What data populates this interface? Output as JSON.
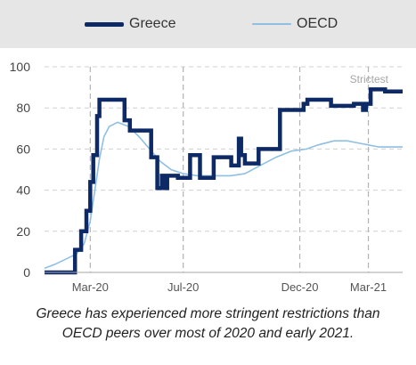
{
  "chart_data": {
    "type": "line",
    "xlabel": "",
    "ylabel": "",
    "ylim": [
      0,
      100
    ],
    "yticks": [
      0,
      20,
      40,
      60,
      80,
      100
    ],
    "ytick_labels": [
      "0",
      "20",
      "40",
      "60",
      "80",
      "100"
    ],
    "xlim": [
      "2020-01-01",
      "2021-04-15"
    ],
    "xticks": [
      {
        "date": "2020-03-01",
        "label": "Mar-20"
      },
      {
        "date": "2020-07-01",
        "label": "Jul-20"
      },
      {
        "date": "2020-12-01",
        "label": "Dec-20"
      },
      {
        "date": "2021-03-01",
        "label": "Mar-21"
      }
    ],
    "vlines": [
      "2020-03-01",
      "2020-07-01",
      "2020-12-01",
      "2021-03-01"
    ],
    "grid": "horizontal dashed",
    "annotation": "Strictest",
    "legend_position": "top",
    "series": [
      {
        "name": "Greece",
        "color": "#0d2a66",
        "points": [
          [
            "2020-01-01",
            0
          ],
          [
            "2020-02-10",
            0
          ],
          [
            "2020-02-10",
            11
          ],
          [
            "2020-02-18",
            11
          ],
          [
            "2020-02-18",
            20
          ],
          [
            "2020-02-25",
            20
          ],
          [
            "2020-02-25",
            30
          ],
          [
            "2020-03-01",
            30
          ],
          [
            "2020-03-01",
            44
          ],
          [
            "2020-03-05",
            44
          ],
          [
            "2020-03-05",
            57
          ],
          [
            "2020-03-10",
            57
          ],
          [
            "2020-03-10",
            76
          ],
          [
            "2020-03-13",
            76
          ],
          [
            "2020-03-13",
            84
          ],
          [
            "2020-04-15",
            84
          ],
          [
            "2020-04-15",
            74
          ],
          [
            "2020-04-22",
            74
          ],
          [
            "2020-04-22",
            69
          ],
          [
            "2020-05-20",
            69
          ],
          [
            "2020-05-20",
            56
          ],
          [
            "2020-05-28",
            56
          ],
          [
            "2020-05-28",
            41
          ],
          [
            "2020-06-03",
            41
          ],
          [
            "2020-06-03",
            47
          ],
          [
            "2020-06-07",
            47
          ],
          [
            "2020-06-07",
            41
          ],
          [
            "2020-06-10",
            41
          ],
          [
            "2020-06-10",
            47
          ],
          [
            "2020-06-24",
            47
          ],
          [
            "2020-06-24",
            46
          ],
          [
            "2020-07-10",
            46
          ],
          [
            "2020-07-10",
            57
          ],
          [
            "2020-07-23",
            57
          ],
          [
            "2020-07-23",
            46
          ],
          [
            "2020-08-10",
            46
          ],
          [
            "2020-08-10",
            56
          ],
          [
            "2020-09-02",
            56
          ],
          [
            "2020-09-02",
            52
          ],
          [
            "2020-09-12",
            52
          ],
          [
            "2020-09-12",
            65
          ],
          [
            "2020-09-15",
            65
          ],
          [
            "2020-09-15",
            57
          ],
          [
            "2020-09-20",
            57
          ],
          [
            "2020-09-20",
            53
          ],
          [
            "2020-10-08",
            53
          ],
          [
            "2020-10-08",
            60
          ],
          [
            "2020-11-05",
            60
          ],
          [
            "2020-11-05",
            79
          ],
          [
            "2020-12-06",
            79
          ],
          [
            "2020-12-06",
            82
          ],
          [
            "2020-12-11",
            82
          ],
          [
            "2020-12-11",
            84
          ],
          [
            "2021-01-11",
            84
          ],
          [
            "2021-01-11",
            81
          ],
          [
            "2021-02-10",
            81
          ],
          [
            "2021-02-10",
            82
          ],
          [
            "2021-02-22",
            82
          ],
          [
            "2021-02-22",
            79
          ],
          [
            "2021-02-26",
            79
          ],
          [
            "2021-02-26",
            82
          ],
          [
            "2021-03-04",
            82
          ],
          [
            "2021-03-04",
            89
          ],
          [
            "2021-03-23",
            89
          ],
          [
            "2021-03-23",
            88
          ],
          [
            "2021-04-15",
            88
          ]
        ]
      },
      {
        "name": "OECD",
        "color": "#8fbfe3",
        "points": [
          [
            "2020-01-01",
            2
          ],
          [
            "2020-01-15",
            4
          ],
          [
            "2020-02-01",
            7
          ],
          [
            "2020-02-12",
            9
          ],
          [
            "2020-02-22",
            14
          ],
          [
            "2020-03-01",
            25
          ],
          [
            "2020-03-07",
            40
          ],
          [
            "2020-03-13",
            55
          ],
          [
            "2020-03-19",
            66
          ],
          [
            "2020-03-26",
            71
          ],
          [
            "2020-04-06",
            73
          ],
          [
            "2020-04-20",
            71
          ],
          [
            "2020-05-04",
            66
          ],
          [
            "2020-05-18",
            60
          ],
          [
            "2020-06-01",
            54
          ],
          [
            "2020-06-15",
            50
          ],
          [
            "2020-07-01",
            48
          ],
          [
            "2020-07-20",
            47
          ],
          [
            "2020-08-10",
            47
          ],
          [
            "2020-09-01",
            47
          ],
          [
            "2020-09-20",
            48
          ],
          [
            "2020-10-10",
            52
          ],
          [
            "2020-10-31",
            56
          ],
          [
            "2020-11-20",
            59
          ],
          [
            "2020-12-10",
            60
          ],
          [
            "2020-12-25",
            62
          ],
          [
            "2021-01-15",
            64
          ],
          [
            "2021-02-01",
            64
          ],
          [
            "2021-02-15",
            63
          ],
          [
            "2021-03-01",
            62
          ],
          [
            "2021-03-15",
            61
          ],
          [
            "2021-04-01",
            61
          ],
          [
            "2021-04-15",
            61
          ]
        ]
      }
    ]
  },
  "caption": {
    "line1": "Greece has experienced more stringent restrictions than",
    "line2": "OECD peers over most of 2020 and early 2021."
  }
}
